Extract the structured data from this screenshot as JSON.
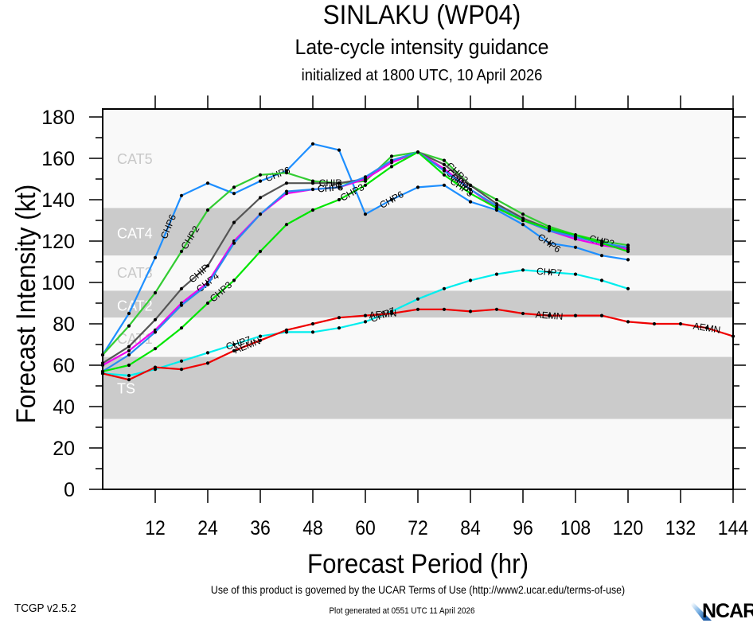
{
  "header": {
    "title": "SINLAKU (WP04)",
    "subtitle": "Late-cycle intensity guidance",
    "init": "initialized at 1800 UTC, 10 April 2026"
  },
  "footer": {
    "terms": "Use of this product is governed by the UCAR Terms of Use (http://www2.ucar.edu/terms-of-use)",
    "generated": "Plot generated at 0551 UTC   11 April 2026",
    "version": "TCGP v2.5.2",
    "logo": "NCAR"
  },
  "chart_data": {
    "type": "line",
    "title": "SINLAKU (WP04) Late-cycle intensity guidance",
    "xlabel": "Forecast Period (hr)",
    "ylabel": "Forecast Intensity (kt)",
    "xlim": [
      0,
      144
    ],
    "ylim": [
      0,
      180
    ],
    "xticks": [
      12,
      24,
      36,
      48,
      60,
      72,
      84,
      96,
      108,
      120,
      132,
      144
    ],
    "yticks": [
      0,
      20,
      40,
      60,
      80,
      100,
      120,
      140,
      160,
      180
    ],
    "grid": false,
    "categories_bands": [
      {
        "label": "CAT5",
        "min": 137,
        "max": 180,
        "shade": "light",
        "label_y": 160
      },
      {
        "label": "CAT4",
        "min": 113,
        "max": 136,
        "shade": "dark",
        "label_y": 124
      },
      {
        "label": "CAT3",
        "min": 96,
        "max": 113,
        "shade": "light",
        "label_y": 105
      },
      {
        "label": "CAT2",
        "min": 83,
        "max": 96,
        "shade": "dark",
        "label_y": 89
      },
      {
        "label": "CAT1",
        "min": 64,
        "max": 83,
        "shade": "light",
        "label_y": 73
      },
      {
        "label": "TS",
        "min": 34,
        "max": 64,
        "shade": "dark",
        "label_y": 49
      },
      {
        "label": "",
        "min": 0,
        "max": 34,
        "shade": "light",
        "label_y": null
      }
    ],
    "series": [
      {
        "name": "CHP6",
        "color": "#1e8fff",
        "x": [
          0,
          6,
          12,
          18,
          24,
          30,
          36,
          42,
          48,
          54,
          60,
          66,
          72,
          78,
          84,
          90,
          96,
          102,
          108,
          114,
          120
        ],
        "values": [
          65,
          85,
          112,
          142,
          148,
          143,
          149,
          154,
          167,
          164,
          133,
          140,
          146,
          147,
          139,
          135,
          128,
          119,
          117,
          113,
          111
        ],
        "labels_at": [
          15,
          40,
          66,
          102
        ]
      },
      {
        "name": "CHP2",
        "color": "#33cc33",
        "x": [
          0,
          6,
          12,
          18,
          24,
          30,
          36,
          42,
          48,
          54,
          60,
          66,
          72,
          78,
          84,
          90,
          96,
          102,
          108,
          114,
          120
        ],
        "values": [
          65,
          79,
          95,
          115,
          135,
          146,
          152,
          153,
          149,
          148,
          149,
          161,
          163,
          159,
          147,
          140,
          133,
          127,
          123,
          120,
          118
        ],
        "labels_at": [
          20,
          81,
          114
        ]
      },
      {
        "name": "CHIP",
        "color": "#555555",
        "x": [
          0,
          6,
          12,
          18,
          24,
          30,
          36,
          42,
          48,
          54,
          60,
          66,
          72,
          78,
          84,
          90,
          96,
          102,
          108,
          114,
          120
        ],
        "values": [
          61,
          69,
          82,
          97,
          108,
          129,
          141,
          148,
          148,
          148,
          150,
          158,
          163,
          157,
          147,
          138,
          131,
          126,
          122,
          119,
          116
        ],
        "labels_at": [
          22,
          52
        ]
      },
      {
        "name": "CHP4",
        "color": "#ee00ee",
        "x": [
          0,
          6,
          12,
          18,
          24,
          30,
          36,
          42,
          48,
          54,
          60,
          66,
          72,
          78,
          84,
          90,
          96,
          102,
          108,
          114,
          120
        ],
        "values": [
          60,
          67,
          77,
          90,
          100,
          120,
          133,
          143,
          145,
          146,
          150,
          158,
          163,
          155,
          145,
          136,
          130,
          125,
          121,
          118,
          116
        ],
        "labels_at": [
          24,
          52,
          81
        ]
      },
      {
        "name": "CHP5",
        "color": "#2a8cf0",
        "x": [
          0,
          6,
          12,
          18,
          24,
          30,
          36,
          42,
          48,
          54,
          60,
          66,
          72,
          78,
          84,
          90,
          96,
          102,
          108,
          114,
          120
        ],
        "values": [
          57,
          65,
          76,
          89,
          99,
          119,
          133,
          144,
          145,
          146,
          151,
          159,
          163,
          154,
          145,
          137,
          130,
          125,
          122,
          119,
          117
        ],
        "labels_at": [
          52,
          82
        ]
      },
      {
        "name": "CHP3",
        "color": "#00e600",
        "x": [
          0,
          6,
          12,
          18,
          24,
          30,
          36,
          42,
          48,
          54,
          60,
          66,
          72,
          78,
          84,
          90,
          96,
          102,
          108,
          114,
          120
        ],
        "values": [
          57,
          60,
          68,
          78,
          90,
          101,
          115,
          128,
          135,
          140,
          147,
          156,
          163,
          152,
          143,
          136,
          130,
          126,
          123,
          119,
          115
        ],
        "labels_at": [
          27,
          57,
          82
        ]
      },
      {
        "name": "CHP7",
        "color": "#00eeee",
        "x": [
          0,
          6,
          12,
          18,
          24,
          30,
          36,
          42,
          48,
          54,
          60,
          66,
          72,
          78,
          84,
          90,
          96,
          102,
          108,
          114,
          120
        ],
        "values": [
          56,
          55,
          58,
          62,
          66,
          70,
          74,
          76,
          76,
          78,
          81,
          86,
          92,
          97,
          101,
          104,
          106,
          105,
          104,
          101,
          97
        ],
        "labels_at": [
          31,
          64,
          102
        ]
      },
      {
        "name": "AEMN",
        "color": "#ee0000",
        "x": [
          0,
          6,
          12,
          18,
          24,
          30,
          36,
          42,
          48,
          54,
          60,
          66,
          72,
          78,
          84,
          90,
          96,
          102,
          108,
          114,
          120,
          126,
          132,
          138,
          144
        ],
        "values": [
          56,
          53,
          59,
          58,
          61,
          67,
          72,
          77,
          80,
          83,
          84,
          85,
          87,
          87,
          86,
          87,
          85,
          84,
          84,
          84,
          81,
          80,
          80,
          78,
          74
        ],
        "labels_at": [
          33,
          64,
          102,
          138
        ]
      }
    ]
  }
}
